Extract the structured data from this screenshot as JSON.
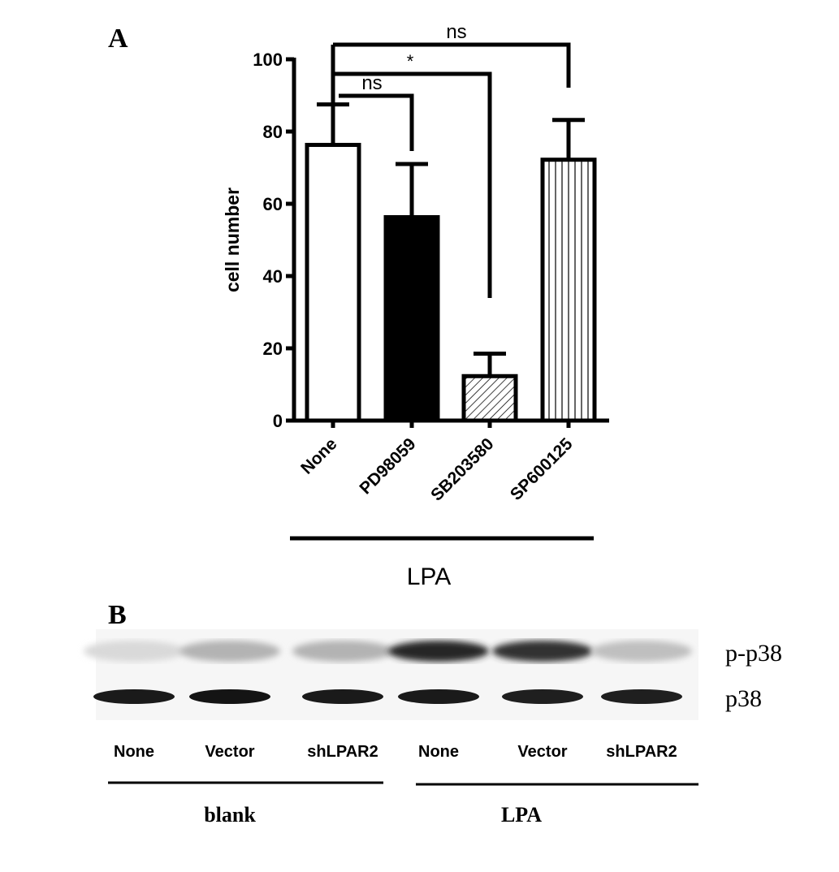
{
  "panel_labels": {
    "a": "A",
    "b": "B"
  },
  "chart_data": {
    "type": "bar",
    "ylabel": "cell number",
    "ylim": [
      0,
      100
    ],
    "yticks": [
      "0",
      "20",
      "40",
      "60",
      "80",
      "100"
    ],
    "categories": [
      "None",
      "PD98059",
      "SB203580",
      "SP600125"
    ],
    "values": [
      76.3,
      56.3,
      12.3,
      72.2
    ],
    "error_upper": [
      87.5,
      71.0,
      18.5,
      83.2
    ],
    "fills": [
      "white",
      "black",
      "diagonal-hatch",
      "vertical-hatch"
    ],
    "group_label": "LPA",
    "grid": false,
    "significance": [
      {
        "from": "None",
        "to": "PD98059",
        "label": "ns"
      },
      {
        "from": "None",
        "to": "SB203580",
        "label": "*"
      },
      {
        "from": "None",
        "to": "SP600125",
        "label": "ns"
      }
    ]
  },
  "blot": {
    "rows": [
      {
        "label": "p-p38",
        "relative_intensity": [
          0.15,
          0.3,
          0.3,
          0.85,
          0.8,
          0.25
        ]
      },
      {
        "label": "p38",
        "relative_intensity": [
          0.9,
          0.92,
          0.9,
          0.9,
          0.88,
          0.88
        ]
      }
    ],
    "lanes": [
      "None",
      "Vector",
      "shLPAR2",
      "None",
      "Vector",
      "shLPAR2"
    ],
    "groups": [
      "blank",
      "LPA"
    ]
  }
}
